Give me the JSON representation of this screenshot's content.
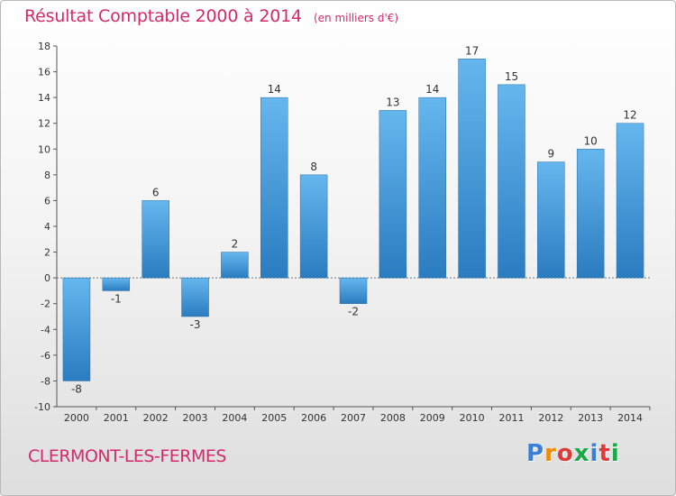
{
  "title": "Résultat Comptable 2000 à 2014",
  "subtitle": "(en milliers d'€)",
  "commune": "CLERMONT-LES-FERMES",
  "logo": {
    "text": "Proxiti",
    "colors": [
      "#3a7fd5",
      "#f08a00",
      "#e03a3a",
      "#1aa84a",
      "#3a7fd5",
      "#e03a3a",
      "#1aa84a"
    ]
  },
  "colors": {
    "title": "#d22a6a",
    "bar_light": "#66b6ee",
    "bar_dark": "#2a7cc0"
  },
  "chart_data": {
    "type": "bar",
    "title": "Résultat Comptable 2000 à 2014",
    "subtitle": "(en milliers d'€)",
    "xlabel": "",
    "ylabel": "",
    "categories": [
      "2000",
      "2001",
      "2002",
      "2003",
      "2004",
      "2005",
      "2006",
      "2007",
      "2008",
      "2009",
      "2010",
      "2011",
      "2012",
      "2013",
      "2014"
    ],
    "values": [
      -8,
      -1,
      6,
      -3,
      2,
      14,
      8,
      -2,
      13,
      14,
      17,
      15,
      9,
      10,
      12
    ],
    "ylim": [
      -10,
      18
    ],
    "yticks": [
      -10,
      -8,
      -6,
      -4,
      -2,
      0,
      2,
      4,
      6,
      8,
      10,
      12,
      14,
      16,
      18
    ],
    "grid": false,
    "legend": "none"
  }
}
